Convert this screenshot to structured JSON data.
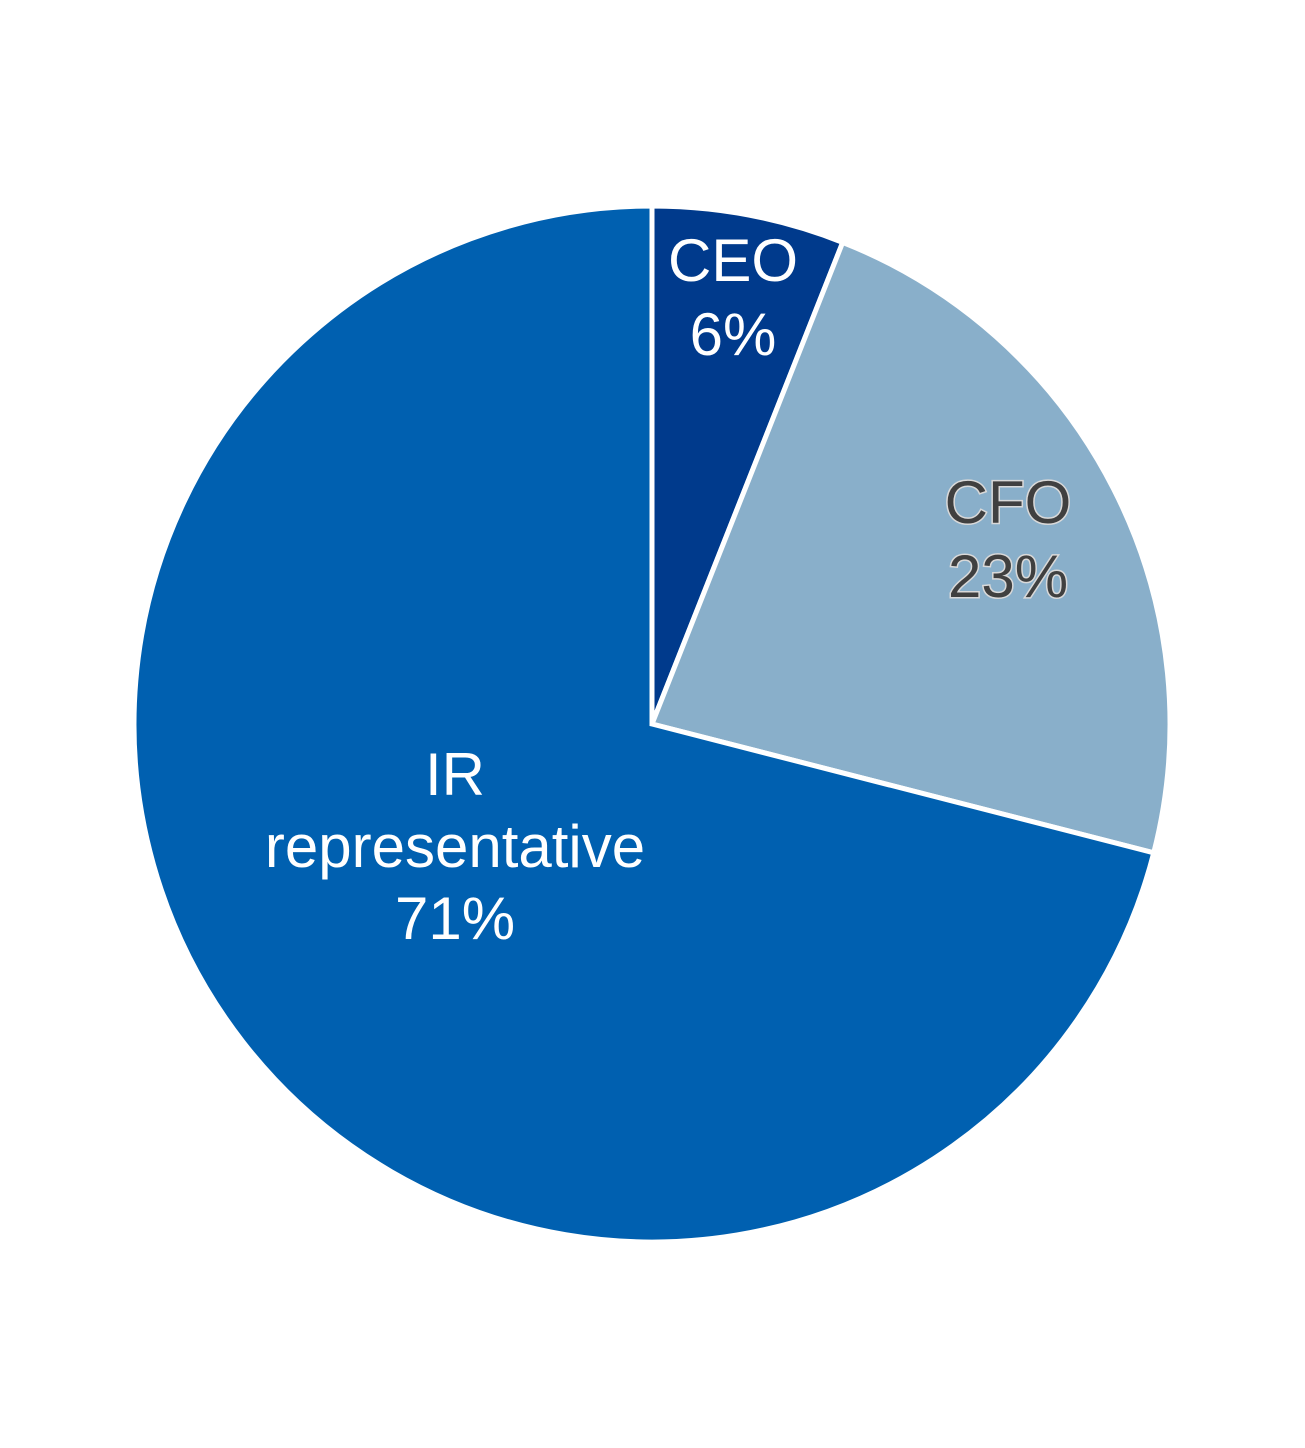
{
  "chart_data": {
    "type": "pie",
    "title": "",
    "start": "12 o'clock",
    "direction": "clockwise",
    "slices": [
      {
        "label": "CEO",
        "value_label": "6%",
        "value": 6,
        "color": "#003a8c",
        "label_color": "#ffffff"
      },
      {
        "label": "CFO",
        "value_label": "23%",
        "value": 23,
        "color": "#89afca",
        "label_color": "#404040"
      },
      {
        "label_lines": [
          "IR",
          "representative"
        ],
        "value_label": "71%",
        "value": 71,
        "color": "#0060b0",
        "label_color": "#ffffff"
      }
    ]
  }
}
